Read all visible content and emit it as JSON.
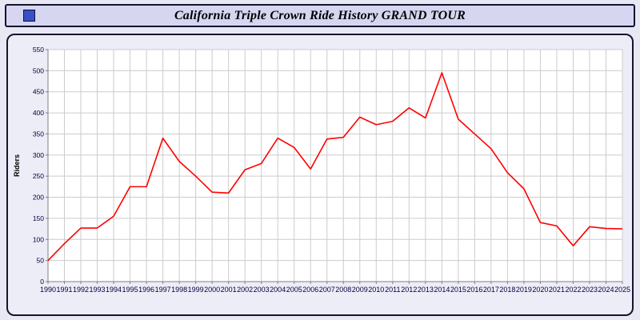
{
  "title_bar": {
    "title": "California Triple Crown Ride History GRAND TOUR"
  },
  "colors": {
    "page_bg": "#e8e8f5",
    "panel_bg": "#ededf8",
    "title_bg": "#d6d6f0",
    "border": "#14142e",
    "plot_bg": "#ffffff",
    "grid": "#cccccc",
    "axis": "#808080",
    "tick_text": "#00003a",
    "line": "#ff0000",
    "icon_blue": "#3a4fc1"
  },
  "chart_data": {
    "type": "line",
    "title": "California Triple Crown Ride History GRAND TOUR",
    "xlabel": "",
    "ylabel": "Riders",
    "ylim": [
      0,
      550
    ],
    "ytick_step": 50,
    "grid": true,
    "legend": "none",
    "line_color": "#ff0000",
    "categories": [
      "1990",
      "1991",
      "1992",
      "1993",
      "1994",
      "1995",
      "1996",
      "1997",
      "1998",
      "1999",
      "2000",
      "2001",
      "2002",
      "2003",
      "2004",
      "2005",
      "2006",
      "2007",
      "2008",
      "2009",
      "2010",
      "2011",
      "2012",
      "2013",
      "2014",
      "2015",
      "2016",
      "2017",
      "2018",
      "2019",
      "2020",
      "2021",
      "2022",
      "2023",
      "2024",
      "2025"
    ],
    "values": [
      50,
      90,
      127,
      127,
      155,
      225,
      225,
      340,
      285,
      250,
      212,
      210,
      265,
      280,
      340,
      318,
      267,
      338,
      342,
      390,
      372,
      380,
      412,
      388,
      495,
      385,
      350,
      315,
      258,
      220,
      140,
      132,
      85,
      130,
      126,
      125
    ]
  }
}
